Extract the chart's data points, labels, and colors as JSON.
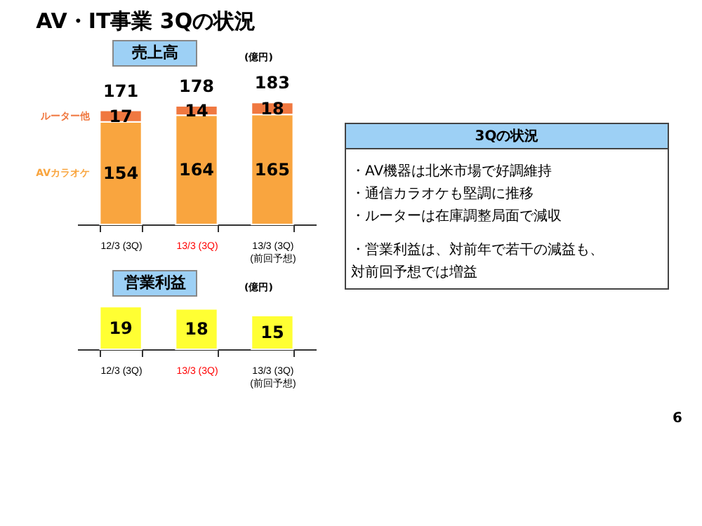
{
  "chart_data": [
    {
      "type": "bar",
      "title": "AV・IT事業 3Qの状況",
      "subtitle": "売上高",
      "categories": [
        "12/3 (3Q)",
        "13/3 (3Q)",
        "13/3 (3Q)\n(前回予想)"
      ],
      "stacked": true,
      "data_labels": true,
      "series": [
        {
          "name": "AVカラオケ",
          "color": "#f9a53f",
          "values": [
            154,
            164,
            165
          ]
        },
        {
          "name": "ルーター他",
          "color": "#f07840",
          "values": [
            17,
            14,
            18
          ]
        }
      ],
      "totals": [
        "171",
        "178",
        "183"
      ],
      "annotations": [
        "(億円)"
      ]
    },
    {
      "type": "bar",
      "title": "営業利益",
      "categories": [
        "12/3 (3Q)",
        "13/3 (3Q)",
        "13/3 (3Q)\n(前回予想)"
      ],
      "values": [
        19,
        18,
        15
      ],
      "color": "#ffff33",
      "data_labels": true,
      "annotations": [
        "(億円)"
      ]
    },
    {
      "type": "other",
      "title": "3Qの状況",
      "annotations": [
        "・AV機器は北米市場で好調維持",
        "・通信カラオケも堅調に推移",
        "・ルーターは在庫調整局面で減収",
        "・営業利益は、対前年で若干の減益も、対前回予想では増益",
        "6"
      ]
    }
  ]
}
